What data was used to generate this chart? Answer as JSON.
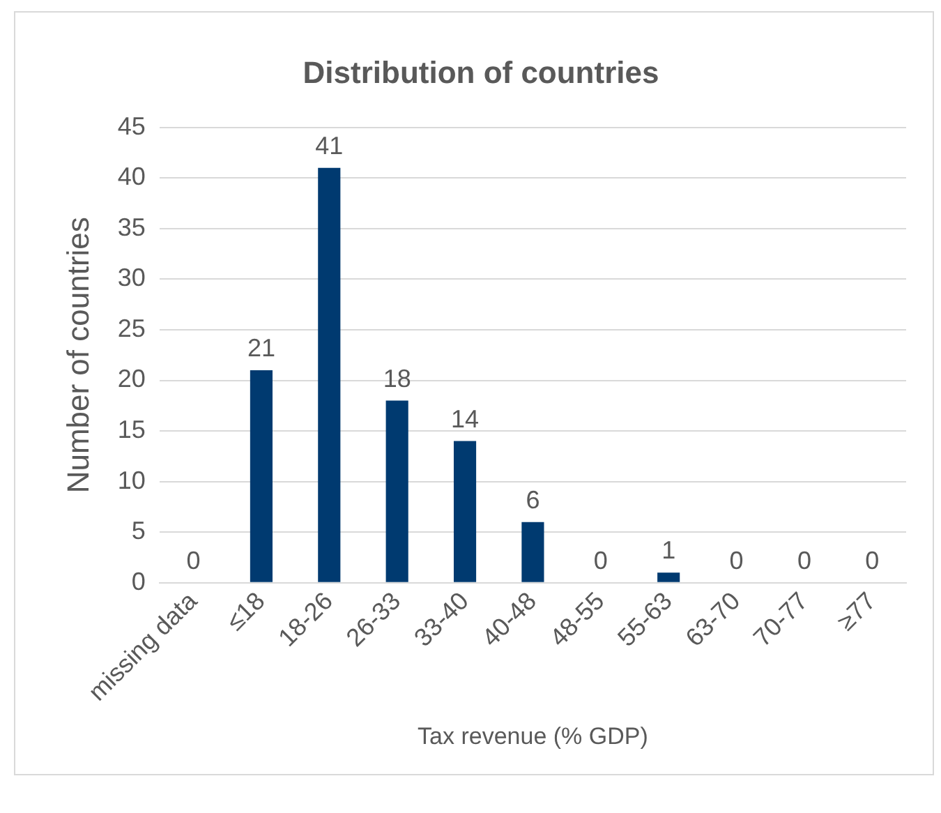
{
  "chart_data": {
    "type": "bar",
    "title": "Distribution of countries",
    "xlabel": "Tax revenue (% GDP)",
    "ylabel": "Number of countries",
    "categories": [
      "missing data",
      "≤18",
      "18-26",
      "26-33",
      "33-40",
      "40-48",
      "48-55",
      "55-63",
      "63-70",
      "70-77",
      "≥77"
    ],
    "values": [
      0,
      21,
      41,
      18,
      14,
      6,
      0,
      1,
      0,
      0,
      0
    ],
    "color": "#003a70",
    "ylim": [
      0,
      45
    ],
    "yticks": [
      0,
      5,
      10,
      15,
      20,
      25,
      30,
      35,
      40,
      45
    ],
    "grid": "y",
    "legend": false,
    "data_labels": true
  }
}
